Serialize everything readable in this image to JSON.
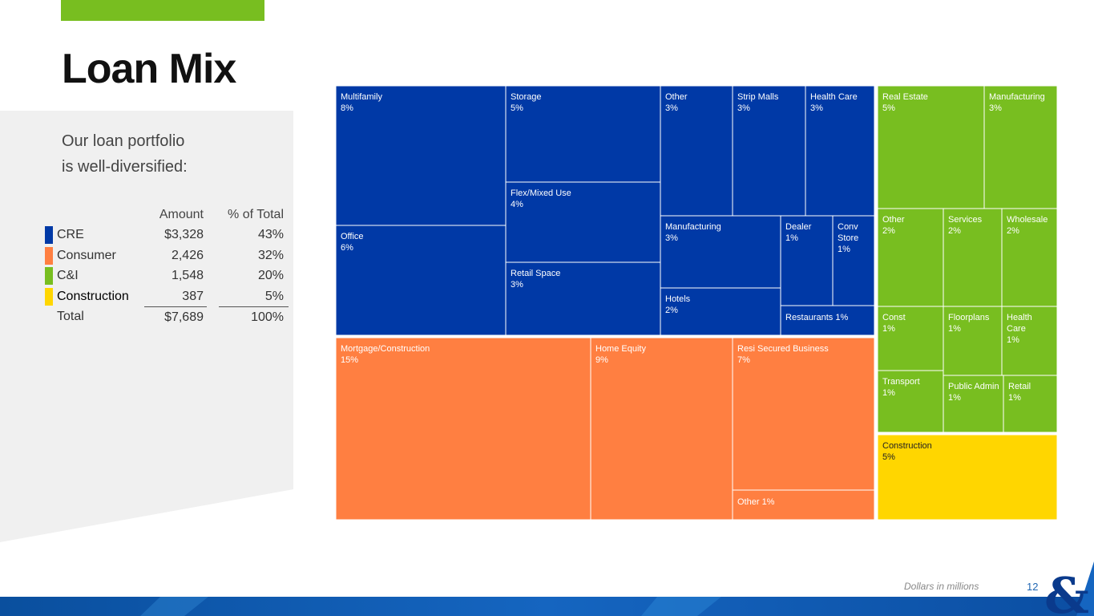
{
  "page": {
    "title": "Loan Mix",
    "intro": "Our loan portfolio\nis well-diversified:",
    "footnote": "Dollars in millions",
    "page_number": "12",
    "colors": {
      "accent": "#78be20",
      "cre": "#0039a6",
      "consumer": "#ff7f41",
      "ci": "#78be20",
      "construction": "#ffd600",
      "panel": "#f0f0f0"
    }
  },
  "summary_table": {
    "headers": {
      "amount": "Amount",
      "pct": "% of Total"
    },
    "rows": [
      {
        "label": "CRE",
        "amount": "$3,328",
        "pct": "43%",
        "color": "#0039a6"
      },
      {
        "label": "Consumer",
        "amount": "2,426",
        "pct": "32%",
        "color": "#ff7f41"
      },
      {
        "label": "C&I",
        "amount": "1,548",
        "pct": "20%",
        "color": "#78be20"
      },
      {
        "label": "Construction",
        "amount": "387",
        "pct": "5%",
        "color": "#ffd600"
      }
    ],
    "total": {
      "label": "Total",
      "amount": "$7,689",
      "pct": "100%"
    }
  },
  "chart_data": {
    "type": "treemap",
    "groups": [
      {
        "name": "CRE",
        "color": "#0039a6",
        "items": [
          {
            "name": "Multifamily",
            "value": "8%"
          },
          {
            "name": "Office",
            "value": "6%"
          },
          {
            "name": "Storage",
            "value": "5%"
          },
          {
            "name": "Flex/Mixed Use",
            "value": "4%"
          },
          {
            "name": "Retail Space",
            "value": "3%"
          },
          {
            "name": "Other",
            "value": "3%"
          },
          {
            "name": "Strip Malls",
            "value": "3%"
          },
          {
            "name": "Health Care",
            "value": "3%"
          },
          {
            "name": "Manufacturing",
            "value": "3%"
          },
          {
            "name": "Dealer",
            "value": "1%"
          },
          {
            "name": "Conv Store",
            "value": "1%"
          },
          {
            "name": "Hotels",
            "value": "2%"
          },
          {
            "name": "Restaurants",
            "value": "1%"
          }
        ]
      },
      {
        "name": "Consumer",
        "color": "#ff7f41",
        "items": [
          {
            "name": "Mortgage/Construction",
            "value": "15%"
          },
          {
            "name": "Home Equity",
            "value": "9%"
          },
          {
            "name": "Resi Secured Business",
            "value": "7%"
          },
          {
            "name": "Other",
            "value": "1%"
          }
        ]
      },
      {
        "name": "C&I",
        "color": "#78be20",
        "items": [
          {
            "name": "Real Estate",
            "value": "5%"
          },
          {
            "name": "Manufacturing",
            "value": "3%"
          },
          {
            "name": "Other",
            "value": "2%"
          },
          {
            "name": "Services",
            "value": "2%"
          },
          {
            "name": "Wholesale",
            "value": "2%"
          },
          {
            "name": "Const",
            "value": "1%"
          },
          {
            "name": "Floorplans",
            "value": "1%"
          },
          {
            "name": "Health Care",
            "value": "1%"
          },
          {
            "name": "Transport",
            "value": "1%"
          },
          {
            "name": "Public Admin",
            "value": "1%"
          },
          {
            "name": "Retail",
            "value": "1%"
          }
        ]
      },
      {
        "name": "Construction",
        "color": "#ffd600",
        "items": [
          {
            "name": "Construction",
            "value": "5%"
          }
        ]
      }
    ]
  }
}
